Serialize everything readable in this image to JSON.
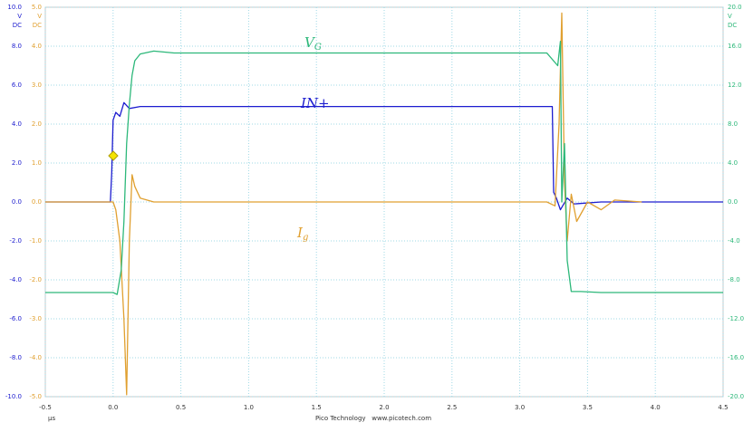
{
  "chart_data": {
    "type": "line",
    "xlim": [
      -0.5,
      4.5
    ],
    "xticks": [
      -0.5,
      {
        "value": 0,
        "label": "0.0"
      },
      0.5,
      {
        "value": 1,
        "label": "1.0"
      },
      1.5,
      {
        "value": 2,
        "label": "2.0"
      },
      2.5,
      {
        "value": 3,
        "label": "3.0"
      },
      3.5,
      {
        "value": 4,
        "label": "4.0"
      },
      4.5
    ],
    "x_unit": "µs",
    "ylim": [
      -10,
      10
    ],
    "yticks": [
      {
        "value": -10,
        "label": "-10.0"
      },
      {
        "value": -8,
        "label": "-8.0"
      },
      {
        "value": -6,
        "label": "-6.0"
      },
      {
        "value": -4,
        "label": "-4.0"
      },
      {
        "value": -2,
        "label": "-2.0"
      },
      {
        "value": 0,
        "label": "0.0"
      },
      {
        "value": 2,
        "label": "2.0"
      },
      {
        "value": 4,
        "label": "4.0"
      },
      {
        "value": 6,
        "label": "6.0"
      },
      {
        "value": 8,
        "label": "8.0"
      },
      {
        "value": 10,
        "label": "10.0"
      }
    ],
    "y_units": [
      "V",
      "DC"
    ],
    "y2lim": [
      -5,
      5
    ],
    "y2ticks": [
      {
        "value": -5,
        "label": "-5.0"
      },
      {
        "value": -4,
        "label": "-4.0"
      },
      {
        "value": -3,
        "label": "-3.0"
      },
      {
        "value": -2,
        "label": "-2.0"
      },
      {
        "value": -1,
        "label": "-1.0"
      },
      {
        "value": 0,
        "label": "0.0"
      },
      {
        "value": 1,
        "label": "1.0"
      },
      {
        "value": 2,
        "label": "2.0"
      },
      {
        "value": 3,
        "label": "3.0"
      },
      {
        "value": 4,
        "label": "4.0"
      },
      {
        "value": 5,
        "label": "5.0"
      }
    ],
    "y2_units": [
      "V",
      "DC"
    ],
    "y3lim": [
      -20,
      20
    ],
    "y3ticks": [
      {
        "value": -20,
        "label": "-20.0"
      },
      {
        "value": -16,
        "label": "-16.0"
      },
      {
        "value": -12,
        "label": "-12.0"
      },
      {
        "value": -8,
        "label": "-8.0"
      },
      {
        "value": -4,
        "label": "-4.0"
      },
      {
        "value": 0,
        "label": "0.0"
      },
      {
        "value": 4,
        "label": "4.0"
      },
      {
        "value": 8,
        "label": "8.0"
      },
      {
        "value": 12,
        "label": "12.0"
      },
      {
        "value": 16,
        "label": "16.0"
      },
      {
        "value": 20,
        "label": "20.0"
      }
    ],
    "y3_units": [
      "V",
      "DC"
    ],
    "grid": true,
    "footer": "Pico Technology   www.picotech.com",
    "annotations": [
      {
        "text": "V",
        "sub": "G"
      },
      {
        "text": "IN+"
      },
      {
        "text": "I",
        "sub": "g"
      }
    ],
    "series": [
      {
        "color": "#1c1ccf",
        "axis": "y",
        "x": [
          -0.5,
          -0.02,
          -0.01,
          0.0,
          0.02,
          0.05,
          0.08,
          0.12,
          0.2,
          0.5,
          1.0,
          2.0,
          2.6,
          2.9,
          3.2,
          3.24,
          3.25,
          3.27,
          3.3,
          3.35,
          3.4,
          3.6,
          4.0,
          4.5
        ],
        "values": [
          0,
          0,
          1.5,
          4.2,
          4.6,
          4.4,
          5.1,
          4.8,
          4.9,
          4.9,
          4.9,
          4.9,
          4.9,
          4.9,
          4.9,
          4.9,
          0.5,
          0.2,
          -0.4,
          0.2,
          -0.1,
          0,
          0,
          0
        ]
      },
      {
        "color": "#e0a030",
        "axis": "y2",
        "x": [
          -0.5,
          0.0,
          0.02,
          0.05,
          0.08,
          0.1,
          0.12,
          0.14,
          0.16,
          0.2,
          0.3,
          1.0,
          3.2,
          3.26,
          3.29,
          3.31,
          3.33,
          3.35,
          3.38,
          3.42,
          3.5,
          3.6,
          3.7,
          3.9
        ],
        "values": [
          0,
          0,
          -0.2,
          -1,
          -3,
          -4.95,
          -1,
          0.7,
          0.4,
          0.1,
          0,
          0,
          0,
          -0.1,
          2,
          4.85,
          0.5,
          -1,
          0.2,
          -0.5,
          0,
          -0.2,
          0.05,
          0
        ]
      },
      {
        "color": "#2db87a",
        "axis": "y3",
        "x": [
          -0.5,
          0.0,
          0.03,
          0.06,
          0.08,
          0.1,
          0.12,
          0.14,
          0.16,
          0.2,
          0.3,
          0.45,
          0.8,
          1.5,
          2.5,
          3.2,
          3.28,
          3.3,
          3.31,
          3.33,
          3.35,
          3.38,
          3.45,
          3.6,
          4.5
        ],
        "values": [
          -9.3,
          -9.3,
          -9.5,
          -7,
          -2,
          6,
          10,
          13,
          14.5,
          15.2,
          15.5,
          15.3,
          15.3,
          15.3,
          15.3,
          15.3,
          14,
          16.5,
          0,
          6,
          -6,
          -9.2,
          -9.2,
          -9.3,
          -9.3
        ]
      }
    ]
  }
}
